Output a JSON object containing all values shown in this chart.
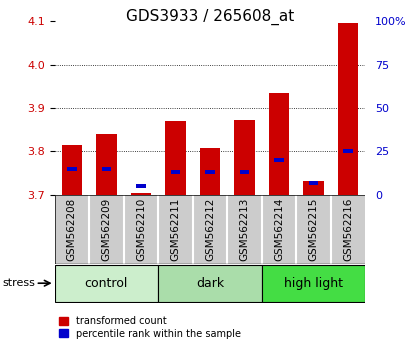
{
  "title": "GDS3933 / 265608_at",
  "samples": [
    "GSM562208",
    "GSM562209",
    "GSM562210",
    "GSM562211",
    "GSM562212",
    "GSM562213",
    "GSM562214",
    "GSM562215",
    "GSM562216"
  ],
  "transformed_counts": [
    3.815,
    3.84,
    3.705,
    3.87,
    3.808,
    3.872,
    3.935,
    3.732,
    4.095
  ],
  "percentile_ranks": [
    15,
    15,
    5,
    13,
    13,
    13,
    20,
    7,
    25
  ],
  "groups": [
    {
      "label": "control",
      "indices": [
        0,
        1,
        2
      ],
      "color": "#cceecc"
    },
    {
      "label": "dark",
      "indices": [
        3,
        4,
        5
      ],
      "color": "#aaddaa"
    },
    {
      "label": "high light",
      "indices": [
        6,
        7,
        8
      ],
      "color": "#44dd44"
    }
  ],
  "ylim_left": [
    3.7,
    4.1
  ],
  "ylim_right": [
    0,
    100
  ],
  "yticks_left": [
    3.7,
    3.8,
    3.9,
    4.0,
    4.1
  ],
  "yticks_right": [
    0,
    25,
    50,
    75,
    100
  ],
  "bar_color_red": "#cc0000",
  "bar_color_blue": "#0000cc",
  "left_tick_color": "#cc0000",
  "right_tick_color": "#0000cc",
  "bar_width": 0.6,
  "stress_label": "stress",
  "legend_red": "transformed count",
  "legend_blue": "percentile rank within the sample",
  "background_plot": "#ffffff",
  "background_label": "#cccccc",
  "title_fontsize": 11,
  "tick_fontsize": 8,
  "label_fontsize": 7.5,
  "group_fontsize": 9,
  "legend_fontsize": 7
}
